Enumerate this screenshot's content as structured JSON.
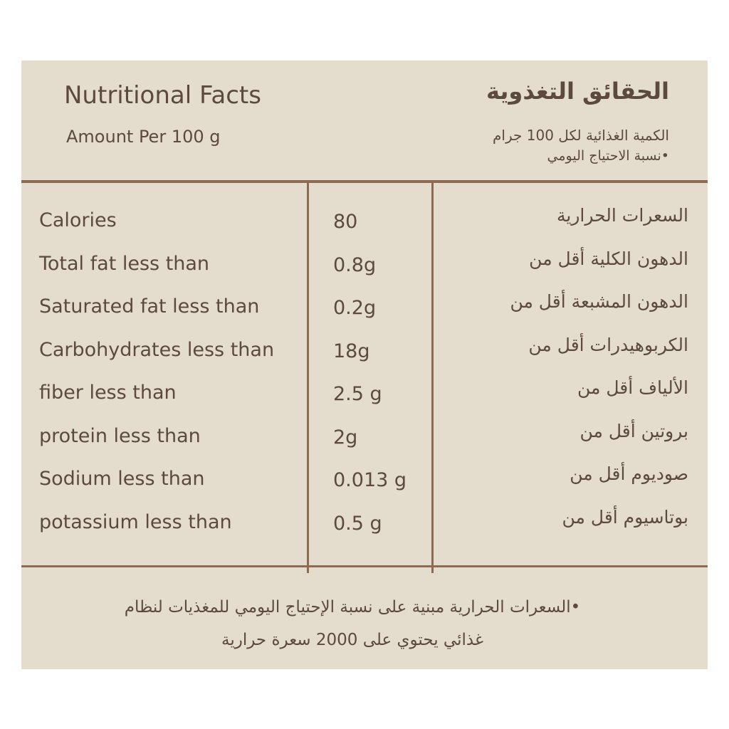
{
  "header": {
    "title": "Nutritional Facts",
    "subtitle": "Amount Per 100 g",
    "title_ar": "الحقائق التغذوية",
    "subtitle_ar": "الكمية الغذائية لكل 100 جرام",
    "note_ar": "•نسبة الاحتياج اليومي"
  },
  "table": {
    "rows": [
      [
        "Calories",
        "80",
        "السعرات الحرارية"
      ],
      [
        "Total fat less than",
        "0.8g",
        "الدهون الكلية أقل من"
      ],
      [
        "Saturated fat less than",
        "0.2g",
        "الدهون المشبعة أقل من"
      ],
      [
        "Carbohydrates less than",
        "18g",
        "الكربوهيدرات أقل من"
      ],
      [
        "fiber less than",
        "2.5 g",
        "الألياف أقل من"
      ],
      [
        "protein less than",
        "2g",
        "بروتين أقل من"
      ],
      [
        "Sodium less than",
        "0.013 g",
        "صوديوم أقل من"
      ],
      [
        "potassium less than",
        "0.5 g",
        "بوتاسيوم أقل من"
      ]
    ]
  },
  "footer": {
    "lines": [
      "•السعرات الحرارية مبنية على نسبة الإحتياج اليومي للمغذيات لنظام",
      "غذائي يحتوي على 2000 سعرة حرارية"
    ]
  }
}
